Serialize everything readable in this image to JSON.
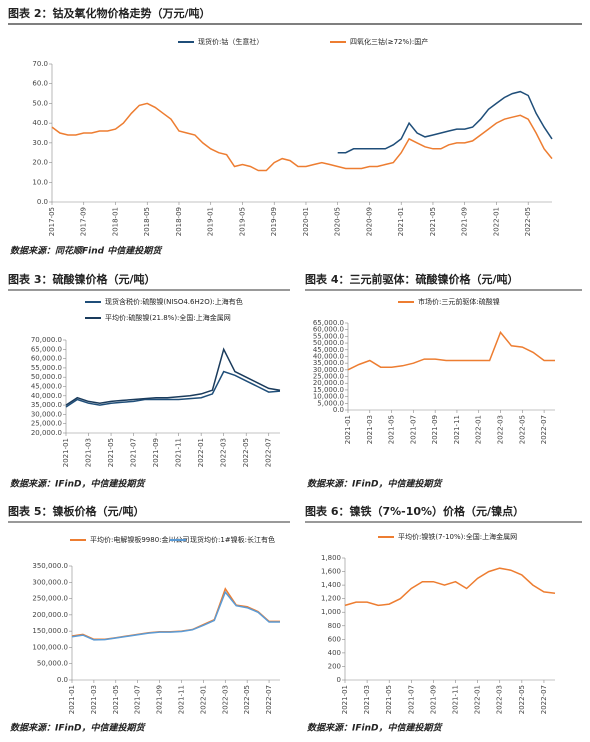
{
  "chart_data": [
    {
      "type": "line",
      "title": "图表 2：钴及氧化物价格走势（万元/吨）",
      "source": "数据来源：同花顺Find 中信建投期货",
      "x": [
        "2017-05",
        "2017-06",
        "2017-07",
        "2017-08",
        "2017-09",
        "2017-10",
        "2017-11",
        "2017-12",
        "2018-01",
        "2018-02",
        "2018-03",
        "2018-04",
        "2018-05",
        "2018-06",
        "2018-07",
        "2018-08",
        "2018-09",
        "2018-10",
        "2018-11",
        "2018-12",
        "2019-01",
        "2019-02",
        "2019-03",
        "2019-04",
        "2019-05",
        "2019-06",
        "2019-07",
        "2019-08",
        "2019-09",
        "2019-10",
        "2019-11",
        "2019-12",
        "2020-01",
        "2020-02",
        "2020-03",
        "2020-04",
        "2020-05",
        "2020-06",
        "2020-07",
        "2020-08",
        "2020-09",
        "2020-10",
        "2020-11",
        "2020-12",
        "2021-01",
        "2021-02",
        "2021-03",
        "2021-04",
        "2021-05",
        "2021-06",
        "2021-07",
        "2021-08",
        "2021-09",
        "2021-10",
        "2021-11",
        "2021-12",
        "2022-01",
        "2022-02",
        "2022-03",
        "2022-04",
        "2022-05",
        "2022-06",
        "2022-07",
        "2022-08"
      ],
      "xticks": [
        "2017-05",
        "2017-09",
        "2018-01",
        "2018-05",
        "2018-09",
        "2019-01",
        "2019-05",
        "2019-09",
        "2020-01",
        "2020-05",
        "2020-09",
        "2021-01",
        "2021-05",
        "2021-09",
        "2022-01",
        "2022-05"
      ],
      "ylim": [
        0,
        70
      ],
      "yticks": [
        {
          "value": 0,
          "label": "0.0"
        },
        {
          "value": 10,
          "label": "10.0"
        },
        {
          "value": 20,
          "label": "20.0"
        },
        {
          "value": 30,
          "label": "30.0"
        },
        {
          "value": 40,
          "label": "40.0"
        },
        {
          "value": 50,
          "label": "50.0"
        },
        {
          "value": 60,
          "label": "60.0"
        },
        {
          "value": 70,
          "label": "70.0"
        }
      ],
      "series": [
        {
          "name": "现货价:钴（生意社）",
          "color": "#1f4e79",
          "values": [
            null,
            null,
            null,
            null,
            null,
            null,
            null,
            null,
            null,
            null,
            null,
            null,
            null,
            null,
            null,
            null,
            null,
            null,
            null,
            null,
            null,
            null,
            null,
            null,
            null,
            null,
            null,
            null,
            null,
            null,
            null,
            null,
            null,
            null,
            null,
            null,
            25,
            25,
            27,
            27,
            27,
            27,
            27,
            29,
            32,
            40,
            35,
            33,
            34,
            35,
            36,
            37,
            37,
            38,
            42,
            47,
            50,
            53,
            55,
            56,
            54,
            45,
            38,
            32
          ]
        },
        {
          "name": "四氧化三钴(≥72%):国产",
          "color": "#ed7d31",
          "values": [
            38,
            35,
            34,
            34,
            35,
            35,
            36,
            36,
            37,
            40,
            45,
            49,
            50,
            48,
            45,
            42,
            36,
            35,
            34,
            30,
            27,
            25,
            24,
            18,
            19,
            18,
            16,
            16,
            20,
            22,
            21,
            18,
            18,
            19,
            20,
            19,
            18,
            17,
            17,
            17,
            18,
            18,
            19,
            20,
            25,
            32,
            30,
            28,
            27,
            27,
            29,
            30,
            30,
            31,
            34,
            37,
            40,
            42,
            43,
            44,
            42,
            35,
            27,
            22
          ]
        }
      ]
    },
    {
      "type": "line",
      "title": "图表 3：硫酸镍价格（元/吨）",
      "source": "数据来源：IFinD，中信建投期货",
      "x": [
        "2021-01",
        "2021-02",
        "2021-03",
        "2021-04",
        "2021-05",
        "2021-06",
        "2021-07",
        "2021-08",
        "2021-09",
        "2021-10",
        "2021-11",
        "2021-12",
        "2022-01",
        "2022-02",
        "2022-03",
        "2022-04",
        "2022-05",
        "2022-06",
        "2022-07",
        "2022-08"
      ],
      "xticks": [
        "2021-01",
        "2021-03",
        "2021-05",
        "2021-07",
        "2021-09",
        "2021-11",
        "2022-01",
        "2022-03",
        "2022-05",
        "2022-07"
      ],
      "ylim": [
        20000,
        70000
      ],
      "yticks": [
        {
          "value": 20000,
          "label": "20,000.0"
        },
        {
          "value": 25000,
          "label": "25,000.0"
        },
        {
          "value": 30000,
          "label": "30,000.0"
        },
        {
          "value": 35000,
          "label": "35,000.0"
        },
        {
          "value": 40000,
          "label": "40,000.0"
        },
        {
          "value": 45000,
          "label": "45,000.0"
        },
        {
          "value": 50000,
          "label": "50,000.0"
        },
        {
          "value": 55000,
          "label": "55,000.0"
        },
        {
          "value": 60000,
          "label": "60,000.0"
        },
        {
          "value": 65000,
          "label": "65,000.0"
        },
        {
          "value": 70000,
          "label": "70,000.0"
        }
      ],
      "series": [
        {
          "name": "现货含税价:硫酸镍(NISO4.6H2O):上海有色",
          "color": "#1f4e79",
          "values": [
            34000,
            38000,
            36000,
            35000,
            36000,
            36500,
            37000,
            38000,
            38000,
            38000,
            38000,
            38500,
            39000,
            41000,
            53000,
            51000,
            48000,
            45000,
            42000,
            42500
          ]
        },
        {
          "name": "平均价:硫酸镍(21.8%):全国:上海金属网",
          "color": "#1a3b5c",
          "values": [
            35000,
            39000,
            37000,
            36000,
            37000,
            37500,
            38000,
            38500,
            39000,
            39000,
            39500,
            40000,
            41000,
            43000,
            65000,
            53000,
            50000,
            47000,
            44000,
            43000
          ]
        }
      ]
    },
    {
      "type": "line",
      "title": "图表 4：三元前驱体：硫酸镍价格（元/吨）",
      "source": "数据来源：IFinD，中信建投期货",
      "x": [
        "2021-01",
        "2021-02",
        "2021-03",
        "2021-04",
        "2021-05",
        "2021-06",
        "2021-07",
        "2021-08",
        "2021-09",
        "2021-10",
        "2021-11",
        "2021-12",
        "2022-01",
        "2022-02",
        "2022-03",
        "2022-04",
        "2022-05",
        "2022-06",
        "2022-07",
        "2022-08"
      ],
      "xticks": [
        "2021-01",
        "2021-03",
        "2021-05",
        "2021-07",
        "2021-09",
        "2021-11",
        "2022-01",
        "2022-03",
        "2022-05",
        "2022-07"
      ],
      "ylim": [
        0,
        65000
      ],
      "yticks": [
        {
          "value": 0,
          "label": "0.0"
        },
        {
          "value": 5000,
          "label": "5,000.0"
        },
        {
          "value": 10000,
          "label": "10,000.0"
        },
        {
          "value": 15000,
          "label": "15,000.0"
        },
        {
          "value": 20000,
          "label": "20,000.0"
        },
        {
          "value": 25000,
          "label": "25,000.0"
        },
        {
          "value": 30000,
          "label": "30,000.0"
        },
        {
          "value": 35000,
          "label": "35,000.0"
        },
        {
          "value": 40000,
          "label": "40,000.0"
        },
        {
          "value": 45000,
          "label": "45,000.0"
        },
        {
          "value": 50000,
          "label": "50,000.0"
        },
        {
          "value": 55000,
          "label": "55,000.0"
        },
        {
          "value": 60000,
          "label": "60,000.0"
        },
        {
          "value": 65000,
          "label": "65,000.0"
        }
      ],
      "series": [
        {
          "name": "市场价:三元前驱体:硫酸镍",
          "color": "#ed7d31",
          "values": [
            30000,
            34000,
            37000,
            32000,
            32000,
            33000,
            35000,
            38000,
            38000,
            37000,
            37000,
            37000,
            37000,
            37000,
            58000,
            48000,
            47000,
            43000,
            37000,
            37000
          ]
        }
      ]
    },
    {
      "type": "line",
      "title": "图表 5：镍板价格（元/吨）",
      "source": "数据来源：IFinD，中信建投期货",
      "x": [
        "2021-01",
        "2021-02",
        "2021-03",
        "2021-04",
        "2021-05",
        "2021-06",
        "2021-07",
        "2021-08",
        "2021-09",
        "2021-10",
        "2021-11",
        "2021-12",
        "2022-01",
        "2022-02",
        "2022-03",
        "2022-04",
        "2022-05",
        "2022-06",
        "2022-07",
        "2022-08"
      ],
      "xticks": [
        "2021-01",
        "2021-03",
        "2021-05",
        "2021-07",
        "2021-09",
        "2021-11",
        "2022-01",
        "2022-03",
        "2022-05",
        "2022-07"
      ],
      "ylim": [
        0,
        350000
      ],
      "yticks": [
        {
          "value": 0,
          "label": "0.0"
        },
        {
          "value": 50000,
          "label": "50,000.0"
        },
        {
          "value": 100000,
          "label": "100,000.0"
        },
        {
          "value": 150000,
          "label": "150,000.0"
        },
        {
          "value": 200000,
          "label": "200,000.0"
        },
        {
          "value": 250000,
          "label": "250,000.0"
        },
        {
          "value": 300000,
          "label": "300,000.0"
        },
        {
          "value": 350000,
          "label": "350,000.0"
        }
      ],
      "series": [
        {
          "name": "平均价:电解镍板9980:金川公司",
          "color": "#ed7d31",
          "values": [
            135000,
            140000,
            125000,
            125000,
            130000,
            135000,
            140000,
            145000,
            148000,
            148000,
            150000,
            155000,
            170000,
            185000,
            280000,
            230000,
            225000,
            210000,
            180000,
            180000
          ]
        },
        {
          "name": "现货均价:1#镍板:长江有色",
          "color": "#5b9bd5",
          "values": [
            133000,
            138000,
            123000,
            124000,
            129000,
            134000,
            139000,
            144000,
            147000,
            147000,
            149000,
            154000,
            168000,
            183000,
            270000,
            228000,
            222000,
            208000,
            178000,
            178000
          ]
        }
      ]
    },
    {
      "type": "line",
      "title": "图表 6：镍铁（7%-10%）价格（元/镍点）",
      "source": "数据来源：IFinD，中信建投期货",
      "x": [
        "2021-01",
        "2021-02",
        "2021-03",
        "2021-04",
        "2021-05",
        "2021-06",
        "2021-07",
        "2021-08",
        "2021-09",
        "2021-10",
        "2021-11",
        "2021-12",
        "2022-01",
        "2022-02",
        "2022-03",
        "2022-04",
        "2022-05",
        "2022-06",
        "2022-07",
        "2022-08"
      ],
      "xticks": [
        "2021-01",
        "2021-03",
        "2021-05",
        "2021-07",
        "2021-09",
        "2021-11",
        "2022-01",
        "2022-03",
        "2022-05",
        "2022-07"
      ],
      "ylim": [
        0,
        1800
      ],
      "yticks": [
        0,
        200,
        400,
        600,
        800,
        {
          "value": 1000,
          "label": "1,000"
        },
        {
          "value": 1200,
          "label": "1,200"
        },
        {
          "value": 1400,
          "label": "1,400"
        },
        {
          "value": 1600,
          "label": "1,600"
        },
        {
          "value": 1800,
          "label": "1,800"
        }
      ],
      "series": [
        {
          "name": "平均价:镍铁(7-10%):全国:上海金属网",
          "color": "#ed7d31",
          "values": [
            1100,
            1150,
            1150,
            1100,
            1120,
            1200,
            1350,
            1450,
            1450,
            1400,
            1450,
            1350,
            1500,
            1600,
            1650,
            1620,
            1550,
            1400,
            1300,
            1280
          ]
        }
      ]
    }
  ]
}
